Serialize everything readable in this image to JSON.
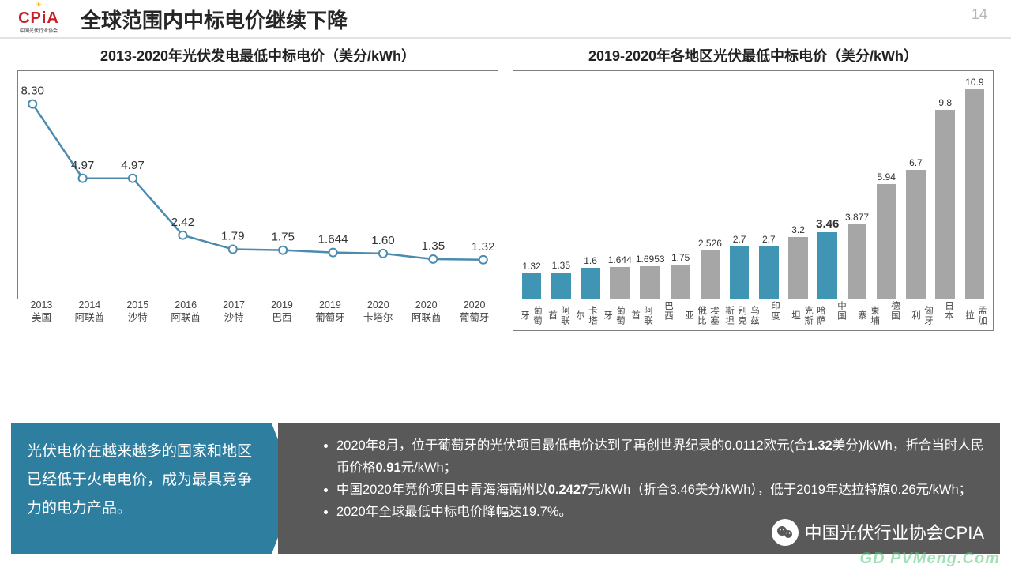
{
  "page_number": "14",
  "header": {
    "logo_text": "CPiA",
    "logo_subtext": "中国光伏行业协会",
    "title": "全球范围内中标电价继续下降"
  },
  "line_chart": {
    "title": "2013-2020年光伏发电最低中标电价（美分/kWh）",
    "type": "line",
    "line_color": "#4b8bb0",
    "marker_fill": "#ffffff",
    "marker_stroke": "#4b8bb0",
    "marker_radius": 5,
    "line_width": 2.5,
    "border_color": "#7f7f7f",
    "ylim": [
      0,
      9
    ],
    "points": [
      {
        "year": "2013",
        "country": "美国",
        "value": 8.3,
        "label": "8.30"
      },
      {
        "year": "2014",
        "country": "阿联酋",
        "value": 4.97,
        "label": "4.97"
      },
      {
        "year": "2015",
        "country": "沙特",
        "value": 4.97,
        "label": "4.97"
      },
      {
        "year": "2016",
        "country": "阿联酋",
        "value": 2.42,
        "label": "2.42"
      },
      {
        "year": "2017",
        "country": "沙特",
        "value": 1.79,
        "label": "1.79"
      },
      {
        "year": "2019",
        "country": "巴西",
        "value": 1.75,
        "label": "1.75"
      },
      {
        "year": "2019",
        "country": "葡萄牙",
        "value": 1.644,
        "label": "1.644"
      },
      {
        "year": "2020",
        "country": "卡塔尔",
        "value": 1.6,
        "label": "1.60"
      },
      {
        "year": "2020",
        "country": "阿联酋",
        "value": 1.35,
        "label": "1.35"
      },
      {
        "year": "2020",
        "country": "葡萄牙",
        "value": 1.32,
        "label": "1.32"
      }
    ]
  },
  "bar_chart": {
    "title": "2019-2020年各地区光伏最低中标电价（美分/kWh）",
    "type": "bar",
    "highlight_color": "#3f95b3",
    "muted_color": "#a6a6a6",
    "border_color": "#7f7f7f",
    "ylim": [
      0,
      11.5
    ],
    "highlight_label_bold": true,
    "bars": [
      {
        "name": "葡萄牙",
        "value": 1.32,
        "label": "1.32",
        "highlight": true
      },
      {
        "name": "阿联酋",
        "value": 1.35,
        "label": "1.35",
        "highlight": true
      },
      {
        "name": "卡塔尔",
        "value": 1.6,
        "label": "1.6",
        "highlight": true
      },
      {
        "name": "葡萄牙",
        "value": 1.644,
        "label": "1.644",
        "highlight": false
      },
      {
        "name": "阿联酋",
        "value": 1.6953,
        "label": "1.6953",
        "highlight": false
      },
      {
        "name": "巴西",
        "value": 1.75,
        "label": "1.75",
        "highlight": false
      },
      {
        "name": "埃塞俄比亚",
        "value": 2.526,
        "label": "2.526",
        "highlight": false
      },
      {
        "name": "乌兹别克斯坦",
        "value": 2.7,
        "label": "2.7",
        "highlight": true
      },
      {
        "name": "印度",
        "value": 2.7,
        "label": "2.7",
        "highlight": true
      },
      {
        "name": "哈萨克斯坦",
        "value": 3.2,
        "label": "3.2",
        "highlight": false
      },
      {
        "name": "中国",
        "value": 3.46,
        "label": "3.46",
        "highlight": true
      },
      {
        "name": "柬埔寨",
        "value": 3.877,
        "label": "3.877",
        "highlight": false
      },
      {
        "name": "德国",
        "value": 5.94,
        "label": "5.94",
        "highlight": false
      },
      {
        "name": "匈牙利",
        "value": 6.7,
        "label": "6.7",
        "highlight": false
      },
      {
        "name": "日本",
        "value": 9.8,
        "label": "9.8",
        "highlight": false
      },
      {
        "name": "孟加拉",
        "value": 10.9,
        "label": "10.9",
        "highlight": false
      }
    ]
  },
  "callout_left": "光伏电价在越来越多的国家和地区已经低于火电电价，成为最具竞争力的电力产品。",
  "callout_right_items": [
    "2020年8月，位于葡萄牙的光伏项目最低电价达到了再创世界纪录的0.0112欧元(合<b>1.32</b>美分)/kWh，折合当时人民币价格<b>0.91</b>元/kWh；",
    "中国2020年竞价项目中青海海南州以<b>0.2427</b>元/kWh（折合3.46美分/kWh），低于2019年达拉特旗0.26元/kWh；",
    "2020年全球最低中标电价降幅达19.7%。"
  ],
  "wechat_label": "中国光伏行业协会CPIA",
  "watermark": "GD PVMeng.Com",
  "colors": {
    "title_underline": "#e3e3e3",
    "callout_left_bg": "#2e7ea0",
    "callout_right_bg": "#595959",
    "page_bg": "#ffffff"
  }
}
